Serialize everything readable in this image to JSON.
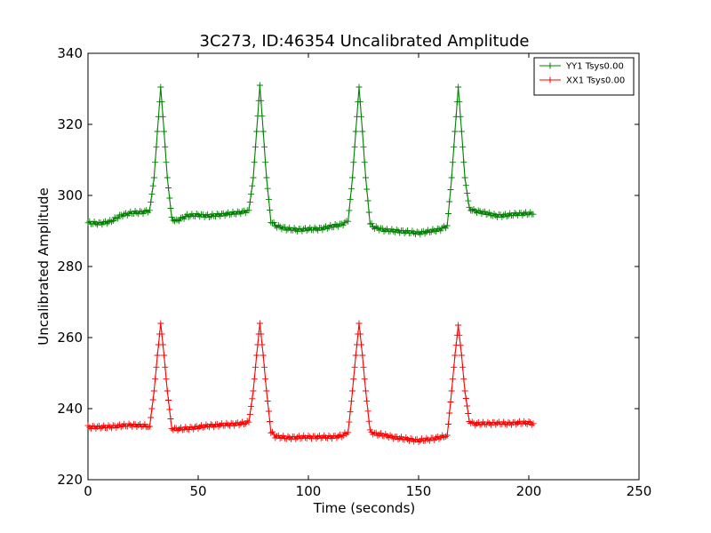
{
  "chart_data": {
    "type": "line",
    "title": "3C273, ID:46354 Uncalibrated Amplitude",
    "xlabel": "Time (seconds)",
    "ylabel": "Uncalibrated Amplitude",
    "xlim": [
      0,
      250
    ],
    "ylim": [
      220,
      340
    ],
    "xticks": [
      0,
      50,
      100,
      150,
      200,
      250
    ],
    "yticks": [
      220,
      240,
      260,
      280,
      300,
      320,
      340
    ],
    "grid": false,
    "legend_position": "top-right",
    "series": [
      {
        "name": "YY1 Tsys0.00",
        "color": "#008000",
        "marker": "+",
        "points": [
          [
            0,
            292.3
          ],
          [
            5,
            292.1
          ],
          [
            10,
            292.6
          ],
          [
            15,
            294.4
          ],
          [
            20,
            295.1
          ],
          [
            25,
            295.3
          ],
          [
            28,
            295.8
          ],
          [
            30,
            305.0
          ],
          [
            31.5,
            318.0
          ],
          [
            33,
            330.5
          ],
          [
            34.5,
            318.0
          ],
          [
            36,
            305.0
          ],
          [
            38,
            293.5
          ],
          [
            40,
            292.8
          ],
          [
            45,
            294.3
          ],
          [
            50,
            294.5
          ],
          [
            55,
            294.2
          ],
          [
            60,
            294.6
          ],
          [
            65,
            294.9
          ],
          [
            70,
            295.3
          ],
          [
            73,
            295.8
          ],
          [
            75,
            305.0
          ],
          [
            76.5,
            318.0
          ],
          [
            78,
            331.0
          ],
          [
            79.5,
            318.0
          ],
          [
            81,
            305.0
          ],
          [
            83,
            292.8
          ],
          [
            85,
            291.5
          ],
          [
            90,
            290.6
          ],
          [
            95,
            290.3
          ],
          [
            100,
            290.5
          ],
          [
            105,
            290.6
          ],
          [
            110,
            291.2
          ],
          [
            115,
            291.8
          ],
          [
            118,
            292.7
          ],
          [
            120,
            305.0
          ],
          [
            121.5,
            318.0
          ],
          [
            123,
            330.5
          ],
          [
            124.5,
            318.0
          ],
          [
            126,
            305.0
          ],
          [
            128,
            292.0
          ],
          [
            130,
            291.0
          ],
          [
            135,
            290.2
          ],
          [
            140,
            290.0
          ],
          [
            145,
            289.7
          ],
          [
            150,
            289.4
          ],
          [
            155,
            289.9
          ],
          [
            160,
            290.5
          ],
          [
            163,
            291.5
          ],
          [
            165,
            305.0
          ],
          [
            166.5,
            318.0
          ],
          [
            168,
            330.5
          ],
          [
            169.5,
            318.0
          ],
          [
            171,
            305.0
          ],
          [
            173,
            296.3
          ],
          [
            175,
            295.7
          ],
          [
            180,
            295.1
          ],
          [
            185,
            294.3
          ],
          [
            190,
            294.4
          ],
          [
            195,
            294.8
          ],
          [
            200,
            294.9
          ],
          [
            202,
            294.7
          ]
        ]
      },
      {
        "name": "XX1 Tsys0.00",
        "color": "#ff0000",
        "marker": "+",
        "points": [
          [
            0,
            234.8
          ],
          [
            5,
            234.8
          ],
          [
            10,
            234.9
          ],
          [
            15,
            235.2
          ],
          [
            20,
            235.4
          ],
          [
            25,
            235.2
          ],
          [
            28,
            235.0
          ],
          [
            30,
            245.0
          ],
          [
            31.5,
            255.0
          ],
          [
            33,
            264.0
          ],
          [
            34.5,
            255.0
          ],
          [
            36,
            245.0
          ],
          [
            38,
            234.5
          ],
          [
            40,
            234.2
          ],
          [
            45,
            234.4
          ],
          [
            50,
            234.8
          ],
          [
            55,
            235.2
          ],
          [
            60,
            235.4
          ],
          [
            65,
            235.6
          ],
          [
            70,
            235.8
          ],
          [
            73,
            236.2
          ],
          [
            75,
            245.0
          ],
          [
            76.5,
            255.0
          ],
          [
            78,
            264.0
          ],
          [
            79.5,
            255.0
          ],
          [
            81,
            245.0
          ],
          [
            83,
            233.5
          ],
          [
            85,
            232.2
          ],
          [
            90,
            231.8
          ],
          [
            95,
            231.9
          ],
          [
            100,
            232.0
          ],
          [
            105,
            232.0
          ],
          [
            110,
            232.0
          ],
          [
            115,
            232.3
          ],
          [
            118,
            233.3
          ],
          [
            120,
            245.0
          ],
          [
            121.5,
            255.0
          ],
          [
            123,
            264.0
          ],
          [
            124.5,
            255.0
          ],
          [
            126,
            245.0
          ],
          [
            128,
            233.6
          ],
          [
            130,
            233.0
          ],
          [
            135,
            232.4
          ],
          [
            140,
            231.8
          ],
          [
            145,
            231.4
          ],
          [
            150,
            231.0
          ],
          [
            155,
            231.4
          ],
          [
            160,
            231.9
          ],
          [
            163,
            232.5
          ],
          [
            165,
            245.0
          ],
          [
            166.5,
            255.0
          ],
          [
            168,
            263.5
          ],
          [
            169.5,
            255.0
          ],
          [
            171,
            245.0
          ],
          [
            173,
            236.5
          ],
          [
            175,
            235.7
          ],
          [
            180,
            235.8
          ],
          [
            185,
            235.9
          ],
          [
            190,
            235.8
          ],
          [
            195,
            236.0
          ],
          [
            200,
            236.0
          ],
          [
            202,
            235.8
          ]
        ]
      }
    ]
  }
}
